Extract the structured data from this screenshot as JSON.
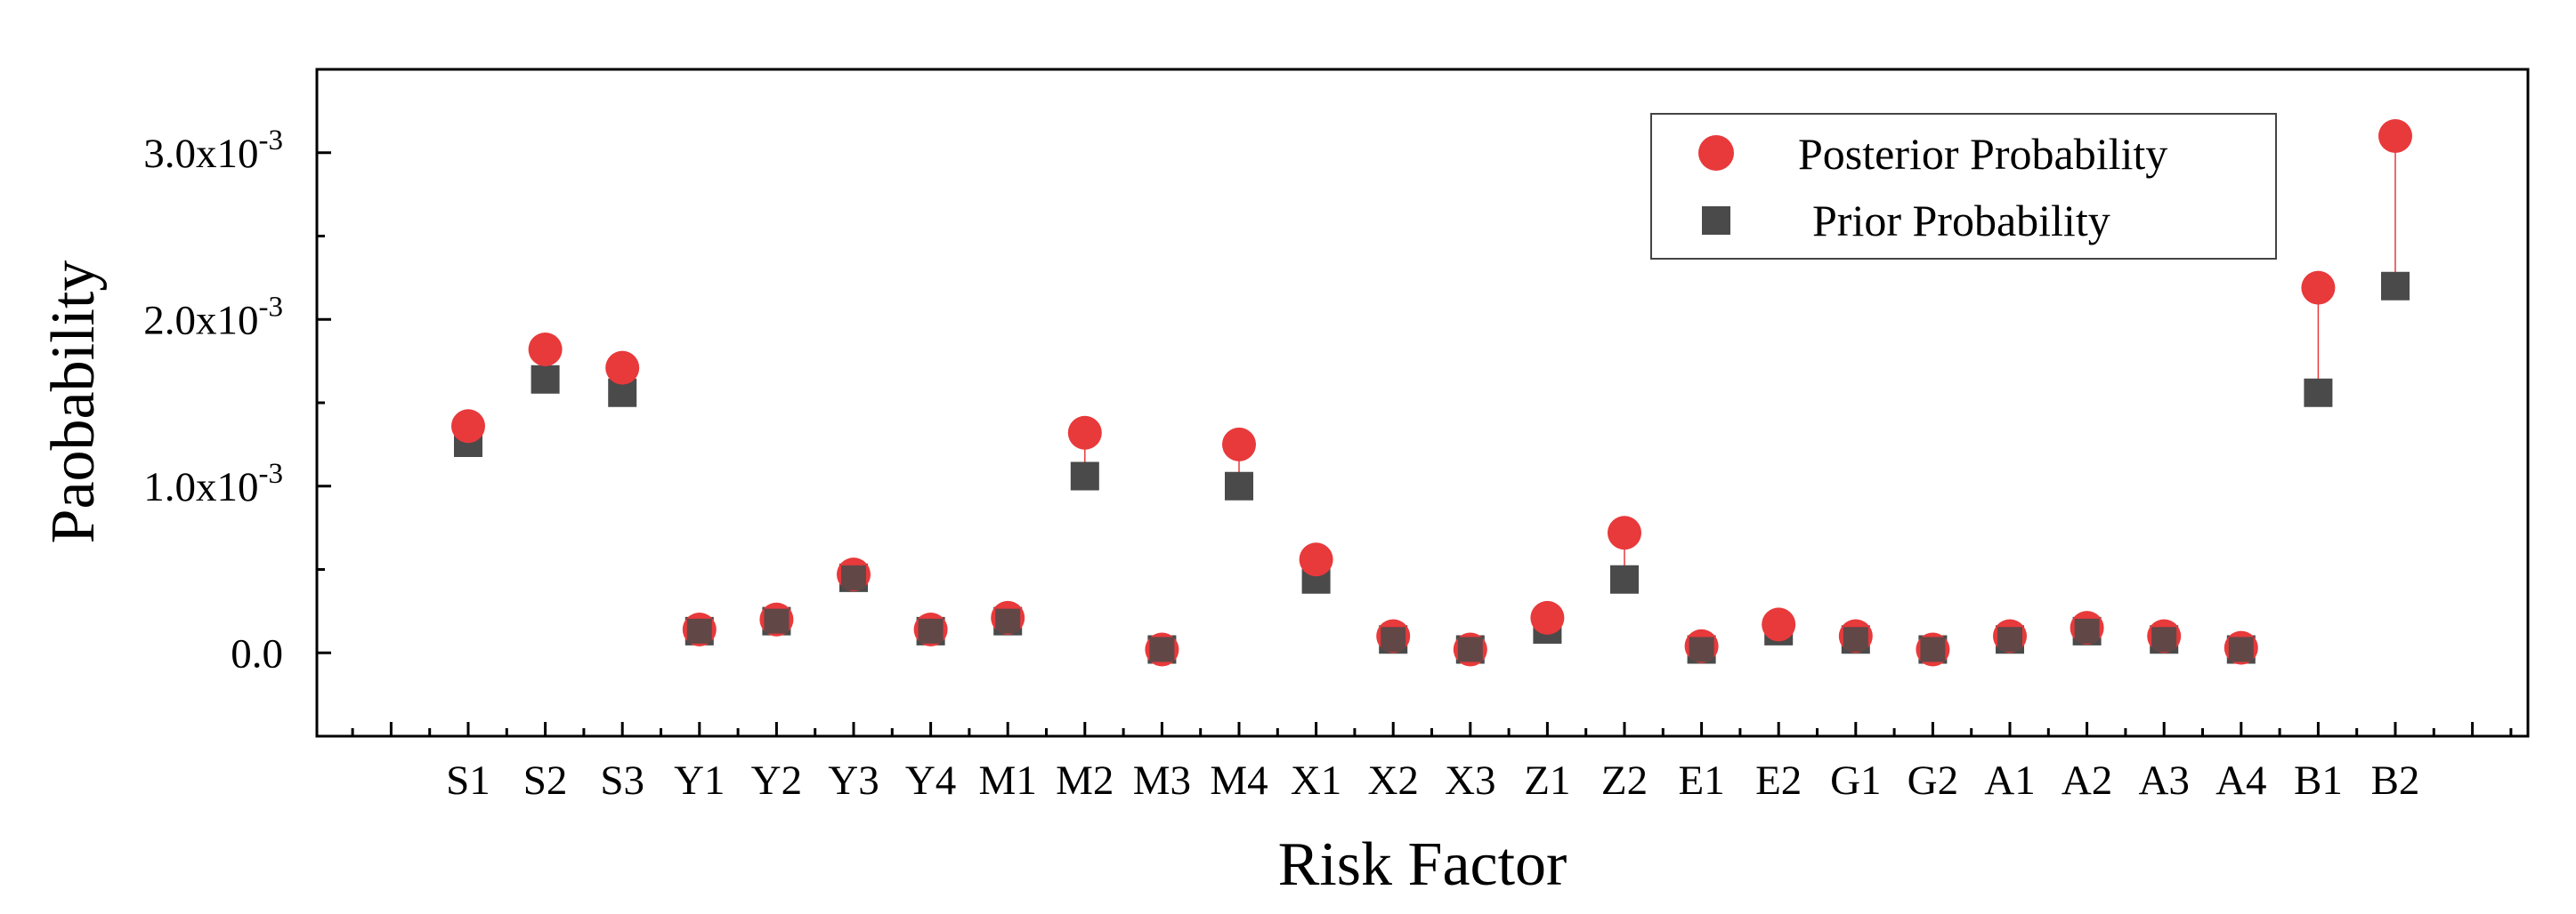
{
  "chart_data": {
    "type": "scatter",
    "xlabel": "Risk Factor",
    "ylabel": "Paobability",
    "categories": [
      "S1",
      "S2",
      "S3",
      "Y1",
      "Y2",
      "Y3",
      "Y4",
      "M1",
      "M2",
      "M3",
      "M4",
      "X1",
      "X2",
      "X3",
      "Z1",
      "Z2",
      "E1",
      "E2",
      "G1",
      "G2",
      "A1",
      "A2",
      "A3",
      "A4",
      "B1",
      "B2"
    ],
    "ylim": [
      -0.0005,
      0.0035
    ],
    "yticks": [
      {
        "value": 0.0,
        "mantissa": "0.0",
        "exponent": ""
      },
      {
        "value": 0.001,
        "mantissa": "1.0x10",
        "exponent": "-3"
      },
      {
        "value": 0.002,
        "mantissa": "2.0x10",
        "exponent": "-3"
      },
      {
        "value": 0.003,
        "mantissa": "3.0x10",
        "exponent": "-3"
      }
    ],
    "series": [
      {
        "name": "Posterior Probability",
        "marker": "circle",
        "color": "#e8393b",
        "values": [
          0.00136,
          0.00182,
          0.00171,
          0.00014,
          0.0002,
          0.00047,
          0.00014,
          0.00021,
          0.00132,
          2e-05,
          0.00125,
          0.00056,
          0.0001,
          2e-05,
          0.00021,
          0.00072,
          4e-05,
          0.00017,
          0.0001,
          2e-05,
          0.0001,
          0.00015,
          0.0001,
          3e-05,
          0.00219,
          0.0031
        ]
      },
      {
        "name": "Prior Probability",
        "marker": "square",
        "color": "#4a4a4a",
        "values": [
          0.00126,
          0.00164,
          0.00156,
          0.00013,
          0.00019,
          0.00045,
          0.00013,
          0.00019,
          0.00106,
          2e-05,
          0.001,
          0.00044,
          8e-05,
          2e-05,
          0.00014,
          0.00044,
          2e-05,
          0.00013,
          8e-05,
          2e-05,
          8e-05,
          0.00013,
          8e-05,
          2e-05,
          0.00156,
          0.0022
        ]
      }
    ],
    "drop_line_color": "#e8393b",
    "legend_position": "top-right",
    "grid": false
  }
}
